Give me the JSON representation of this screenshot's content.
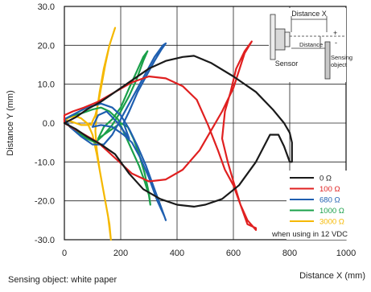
{
  "chart_data": {
    "type": "line",
    "xlabel": "Distance X (mm)",
    "ylabel": "Distance Y (mm)",
    "xlim": [
      0,
      1000
    ],
    "ylim": [
      -30,
      30
    ],
    "x_ticks": [
      "0",
      "200",
      "400",
      "600",
      "800",
      "1000"
    ],
    "y_ticks": [
      "30.0",
      "20.0",
      "10.0",
      "0.0",
      "-10.0",
      "-20.0",
      "-30.0"
    ],
    "grid": true,
    "legend_position": "bottom-right",
    "legend_note": "when using in 12 VDC",
    "footnote": "Sensing object: white paper",
    "series": [
      {
        "name": "0 Ω",
        "color": "#1a1a1a",
        "points": [
          [
            0,
            0
          ],
          [
            40,
            1.5
          ],
          [
            80,
            3.5
          ],
          [
            130,
            5.5
          ],
          [
            180,
            8
          ],
          [
            240,
            11
          ],
          [
            300,
            14
          ],
          [
            360,
            16
          ],
          [
            420,
            17
          ],
          [
            460,
            17.3
          ],
          [
            520,
            15.5
          ],
          [
            600,
            12
          ],
          [
            680,
            8
          ],
          [
            740,
            3.5
          ],
          [
            780,
            0
          ],
          [
            800,
            -2.5
          ],
          [
            808,
            -5
          ],
          [
            808,
            -10
          ],
          [
            800,
            -10
          ],
          [
            780,
            -6
          ],
          [
            760,
            -3
          ],
          [
            730,
            -3
          ],
          [
            680,
            -10
          ],
          [
            620,
            -16
          ],
          [
            560,
            -19.5
          ],
          [
            500,
            -21
          ],
          [
            460,
            -21.5
          ],
          [
            400,
            -21
          ],
          [
            340,
            -19.5
          ],
          [
            280,
            -17
          ],
          [
            230,
            -13
          ],
          [
            180,
            -8
          ],
          [
            130,
            -5.5
          ],
          [
            80,
            -3.5
          ],
          [
            40,
            -1.5
          ],
          [
            0,
            0
          ]
        ]
      },
      {
        "name": "100 Ω",
        "color": "#e02020",
        "points": [
          [
            0,
            2
          ],
          [
            30,
            3
          ],
          [
            70,
            4
          ],
          [
            120,
            5.5
          ],
          [
            180,
            8
          ],
          [
            240,
            10.5
          ],
          [
            300,
            12
          ],
          [
            360,
            11.5
          ],
          [
            420,
            9.5
          ],
          [
            470,
            6
          ],
          [
            510,
            -0.5
          ],
          [
            545,
            -7
          ],
          [
            570,
            -12
          ],
          [
            600,
            -16
          ],
          [
            625,
            -21
          ],
          [
            650,
            -25
          ],
          [
            680,
            -27.5
          ],
          [
            680,
            -27
          ],
          [
            650,
            -26
          ],
          [
            625,
            -21
          ],
          [
            600,
            -15
          ],
          [
            580,
            -10
          ],
          [
            560,
            -4
          ],
          [
            570,
            3
          ],
          [
            590,
            8
          ],
          [
            610,
            14
          ],
          [
            640,
            18.5
          ],
          [
            665,
            21
          ],
          [
            665,
            21
          ],
          [
            640,
            18
          ],
          [
            600,
            9
          ],
          [
            560,
            3
          ],
          [
            520,
            -2
          ],
          [
            480,
            -7
          ],
          [
            420,
            -12
          ],
          [
            360,
            -14.5
          ],
          [
            300,
            -15
          ],
          [
            240,
            -13
          ],
          [
            180,
            -9
          ],
          [
            120,
            -5
          ],
          [
            60,
            -2.5
          ],
          [
            0,
            0
          ],
          [
            0,
            2
          ]
        ]
      },
      {
        "name": "680 Ω",
        "color": "#1f5fb0",
        "points": [
          [
            0,
            1
          ],
          [
            40,
            2.5
          ],
          [
            80,
            4
          ],
          [
            130,
            5
          ],
          [
            170,
            4
          ],
          [
            200,
            2
          ],
          [
            230,
            -1.5
          ],
          [
            260,
            -6
          ],
          [
            290,
            -11
          ],
          [
            320,
            -17
          ],
          [
            345,
            -22
          ],
          [
            360,
            -25
          ],
          [
            355,
            -24
          ],
          [
            330,
            -20
          ],
          [
            300,
            -14
          ],
          [
            270,
            -9
          ],
          [
            240,
            -5
          ],
          [
            210,
            -3
          ],
          [
            170,
            -1
          ],
          [
            130,
            -0.5
          ],
          [
            100,
            -1
          ],
          [
            120,
            2
          ],
          [
            150,
            3
          ],
          [
            190,
            0
          ],
          [
            230,
            -4
          ],
          [
            210,
            0
          ],
          [
            230,
            3
          ],
          [
            260,
            8
          ],
          [
            290,
            12
          ],
          [
            320,
            16
          ],
          [
            345,
            19
          ],
          [
            360,
            20.5
          ],
          [
            350,
            20
          ],
          [
            320,
            17
          ],
          [
            290,
            13
          ],
          [
            260,
            9
          ],
          [
            230,
            5
          ],
          [
            200,
            1
          ],
          [
            170,
            -3
          ],
          [
            140,
            -5.5
          ],
          [
            100,
            -5.5
          ],
          [
            60,
            -3.5
          ],
          [
            20,
            -1
          ],
          [
            0,
            1
          ]
        ]
      },
      {
        "name": "1000 Ω",
        "color": "#1aa04a",
        "points": [
          [
            0,
            1
          ],
          [
            30,
            2
          ],
          [
            60,
            2.5
          ],
          [
            100,
            3.5
          ],
          [
            130,
            4
          ],
          [
            160,
            3
          ],
          [
            190,
            1
          ],
          [
            215,
            -3
          ],
          [
            240,
            -7
          ],
          [
            265,
            -11
          ],
          [
            285,
            -15
          ],
          [
            300,
            -18.5
          ],
          [
            305,
            -21
          ],
          [
            300,
            -18
          ],
          [
            285,
            -13
          ],
          [
            265,
            -8
          ],
          [
            245,
            -4
          ],
          [
            225,
            -1
          ],
          [
            200,
            0
          ],
          [
            170,
            -1.5
          ],
          [
            140,
            -3
          ],
          [
            120,
            -4
          ],
          [
            140,
            -1
          ],
          [
            170,
            1
          ],
          [
            200,
            4
          ],
          [
            230,
            9
          ],
          [
            255,
            13
          ],
          [
            280,
            17
          ],
          [
            295,
            18.5
          ],
          [
            280,
            16
          ],
          [
            255,
            11
          ],
          [
            230,
            7
          ],
          [
            200,
            3
          ],
          [
            170,
            -0.5
          ],
          [
            140,
            -3
          ],
          [
            110,
            -5
          ],
          [
            80,
            -4
          ],
          [
            50,
            -2.5
          ],
          [
            20,
            -1
          ],
          [
            0,
            1
          ]
        ]
      },
      {
        "name": "3000 Ω",
        "color": "#f5b800",
        "points": [
          [
            0,
            1
          ],
          [
            20,
            1.5
          ],
          [
            40,
            1.8
          ],
          [
            60,
            1.2
          ],
          [
            80,
            0
          ],
          [
            95,
            -0.5
          ],
          [
            100,
            0.5
          ],
          [
            110,
            2
          ],
          [
            120,
            5
          ],
          [
            130,
            9
          ],
          [
            145,
            15
          ],
          [
            160,
            20
          ],
          [
            180,
            24.5
          ],
          [
            160,
            20
          ],
          [
            140,
            14
          ],
          [
            125,
            8
          ],
          [
            115,
            3
          ],
          [
            110,
            -2
          ],
          [
            115,
            -7
          ],
          [
            125,
            -12
          ],
          [
            140,
            -18
          ],
          [
            155,
            -24
          ],
          [
            165,
            -30
          ],
          [
            160,
            -26
          ],
          [
            145,
            -20
          ],
          [
            130,
            -14
          ],
          [
            115,
            -8
          ],
          [
            100,
            -3
          ],
          [
            85,
            -0.5
          ],
          [
            60,
            -0.5
          ],
          [
            40,
            0
          ],
          [
            20,
            0.5
          ],
          [
            0,
            1
          ]
        ]
      }
    ]
  },
  "inset": {
    "distance_x_label": "Distance X",
    "distance_y_label": "Distance Y",
    "sensor_label": "Sensor",
    "object_label_1": "Sensing",
    "object_label_2": "object",
    "plus_sign": "+",
    "minus_sign": "-"
  }
}
